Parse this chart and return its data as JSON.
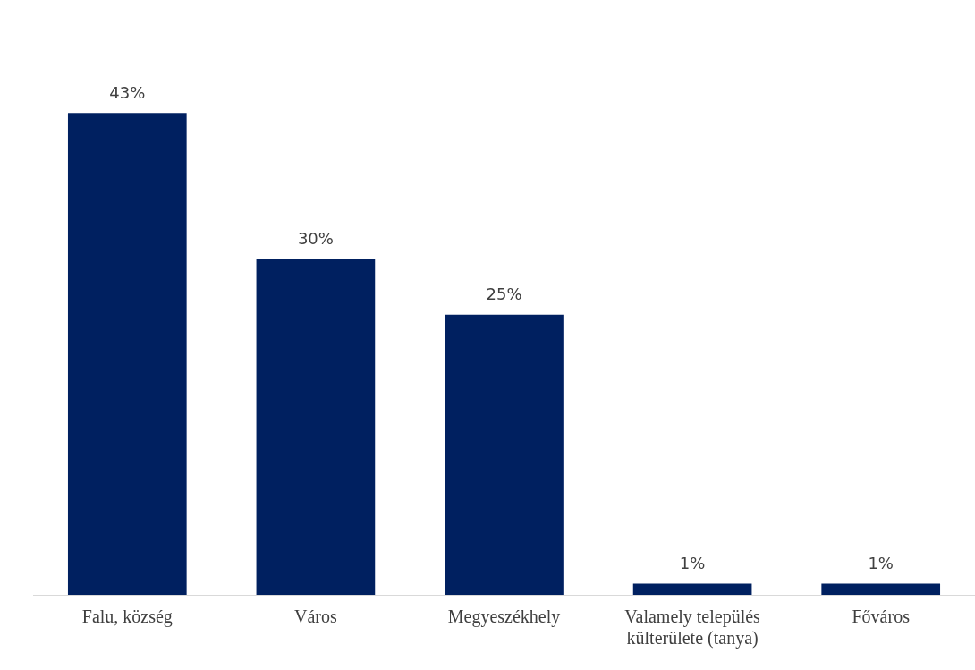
{
  "chart_data": {
    "type": "bar",
    "categories": [
      "Falu, község",
      "Város",
      "Megyeszékhely",
      "Valamely település külterülete (tanya)",
      "Főváros"
    ],
    "values": [
      43,
      30,
      25,
      1,
      1
    ],
    "value_labels": [
      "43%",
      "30%",
      "25%",
      "1%",
      "1%"
    ],
    "color": "#002060",
    "grid": false,
    "legend": false
  }
}
